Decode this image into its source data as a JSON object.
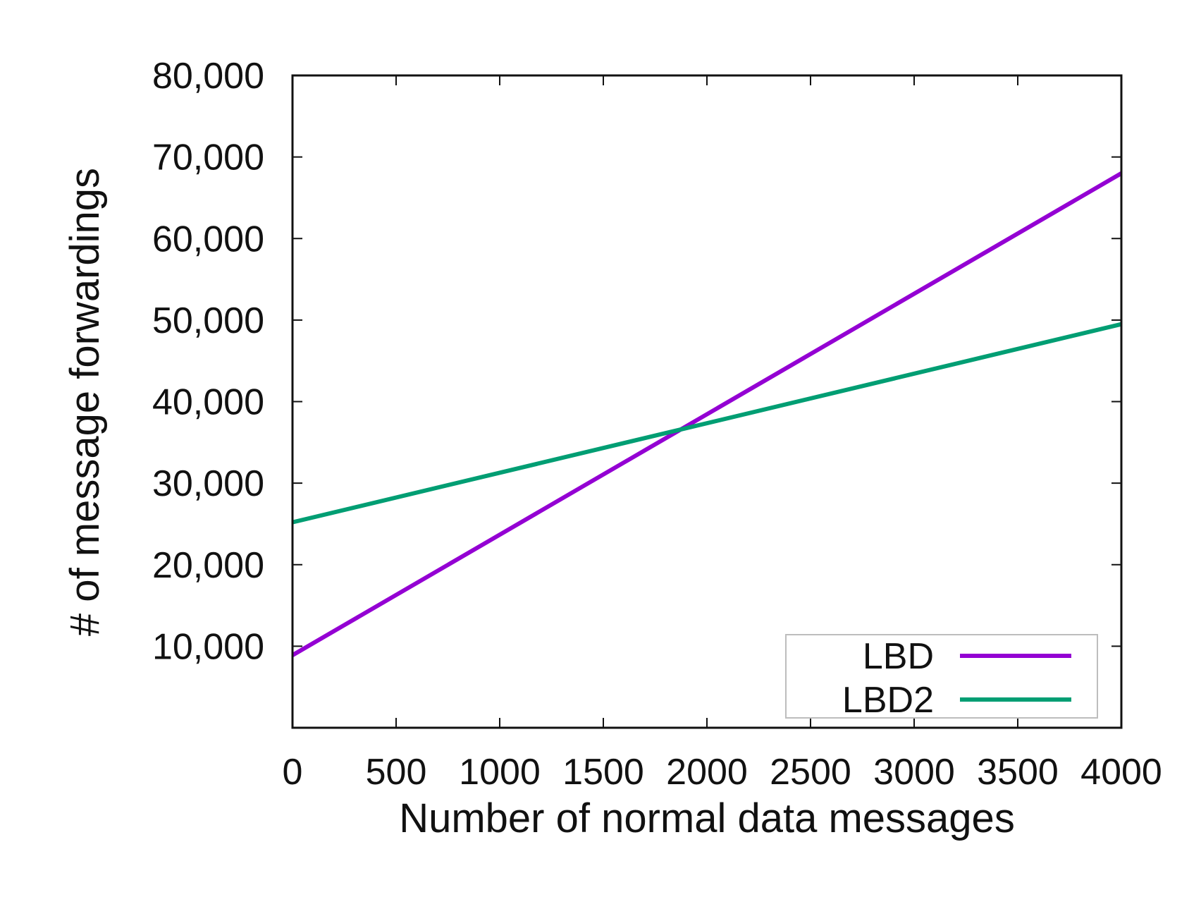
{
  "chart_data": {
    "type": "line",
    "title": "",
    "xlabel": "Number of normal data messages",
    "ylabel": "# of message forwardings",
    "xlim": [
      0,
      4000
    ],
    "ylim": [
      0,
      80000
    ],
    "x_ticks": [
      0,
      500,
      1000,
      1500,
      2000,
      2500,
      3000,
      3500,
      4000
    ],
    "x_tick_labels": [
      "0",
      "500",
      "1000",
      "1500",
      "2000",
      "2500",
      "3000",
      "3500",
      "4000"
    ],
    "y_ticks": [
      10000,
      20000,
      30000,
      40000,
      50000,
      60000,
      70000,
      80000
    ],
    "y_tick_labels": [
      "10,000",
      "20,000",
      "30,000",
      "40,000",
      "50,000",
      "60,000",
      "70,000",
      "80,000"
    ],
    "grid": false,
    "legend_position": "bottom-right",
    "series": [
      {
        "name": "LBD",
        "color": "#9400d3",
        "x": [
          0,
          4000
        ],
        "y": [
          8900,
          68000
        ]
      },
      {
        "name": "LBD2",
        "color": "#009e73",
        "x": [
          0,
          4000
        ],
        "y": [
          25200,
          49500
        ]
      }
    ]
  }
}
